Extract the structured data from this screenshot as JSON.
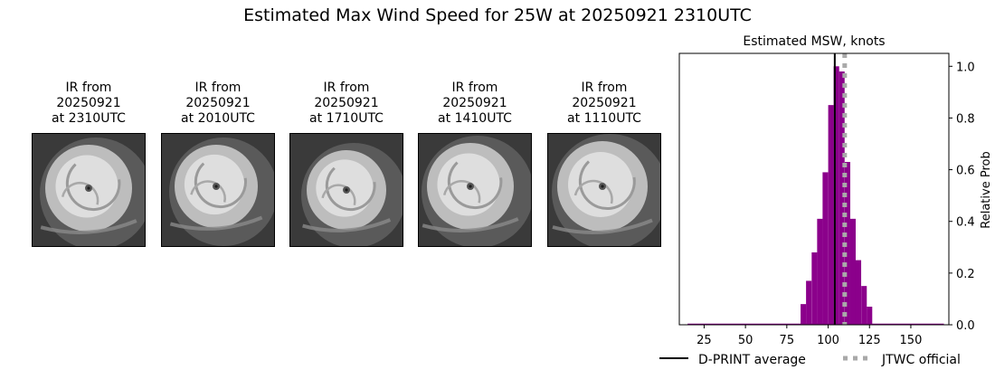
{
  "figure": {
    "title": "Estimated Max Wind Speed for 25W at 20250921 2310UTC"
  },
  "ir_images": [
    {
      "line1": "IR from",
      "line2": "20250921",
      "line3": "at 2310UTC",
      "image": "satellite-ir-typhoon-image"
    },
    {
      "line1": "IR from",
      "line2": "20250921",
      "line3": "at 2010UTC",
      "image": "satellite-ir-typhoon-image"
    },
    {
      "line1": "IR from",
      "line2": "20250921",
      "line3": "at 1710UTC",
      "image": "satellite-ir-typhoon-image"
    },
    {
      "line1": "IR from",
      "line2": "20250921",
      "line3": "at 1410UTC",
      "image": "satellite-ir-typhoon-image"
    },
    {
      "line1": "IR from",
      "line2": "20250921",
      "line3": "at 1110UTC",
      "image": "satellite-ir-typhoon-image"
    }
  ],
  "chart_data": {
    "type": "bar",
    "title": "Estimated MSW, knots",
    "xlabel": "",
    "ylabel": "Relative Prob",
    "xlim": [
      10,
      173
    ],
    "ylim": [
      0,
      1.05
    ],
    "xticks": [
      25,
      50,
      75,
      100,
      125,
      150
    ],
    "yticks": [
      0.0,
      0.2,
      0.4,
      0.6,
      0.8,
      1.0
    ],
    "y_axis_side": "right",
    "bar_color": "#8b008b",
    "bin_width": 3.33,
    "bins": [
      {
        "x": 85.0,
        "value": 0.08
      },
      {
        "x": 88.3,
        "value": 0.17
      },
      {
        "x": 91.7,
        "value": 0.28
      },
      {
        "x": 95.0,
        "value": 0.41
      },
      {
        "x": 98.3,
        "value": 0.59
      },
      {
        "x": 101.7,
        "value": 0.85
      },
      {
        "x": 105.0,
        "value": 1.0
      },
      {
        "x": 108.3,
        "value": 0.98
      },
      {
        "x": 111.7,
        "value": 0.63
      },
      {
        "x": 115.0,
        "value": 0.41
      },
      {
        "x": 118.3,
        "value": 0.25
      },
      {
        "x": 121.7,
        "value": 0.15
      },
      {
        "x": 125.0,
        "value": 0.07
      }
    ],
    "baseline_range": [
      15,
      170
    ],
    "dprint_average": 104,
    "jtwc_official": 110,
    "legend": {
      "position": "bottom",
      "items": [
        {
          "label": "D-PRINT average",
          "color": "#000000",
          "style": "solid"
        },
        {
          "label": "JTWC official",
          "color": "#a9a9a9",
          "style": "dotted"
        }
      ]
    }
  }
}
